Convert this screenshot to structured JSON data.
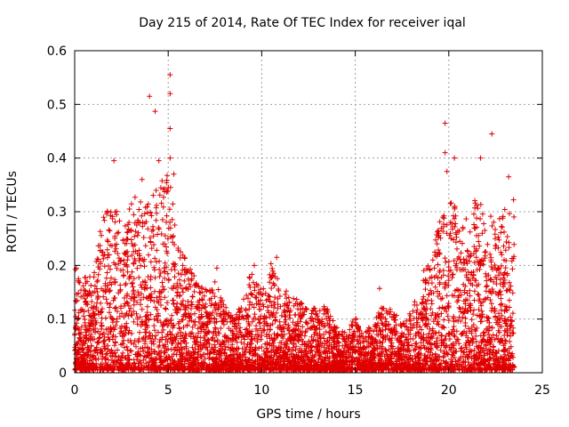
{
  "chart_data": {
    "type": "scatter",
    "title": "Day 215 of 2014, Rate Of TEC Index for receiver iqal",
    "xlabel": "GPS time / hours",
    "ylabel": "ROTI / TECUs",
    "xlim": [
      0,
      25
    ],
    "ylim": [
      0,
      0.6
    ],
    "x_ticks": [
      0,
      5,
      10,
      15,
      20,
      25
    ],
    "y_ticks": [
      0,
      0.1,
      0.2,
      0.3,
      0.4,
      0.5,
      0.6
    ],
    "x_tick_labels": [
      "0",
      "5",
      "10",
      "15",
      "20",
      "25"
    ],
    "y_tick_labels": [
      "0",
      "0.1",
      "0.2",
      "0.3",
      "0.4",
      "0.5",
      "0.6"
    ],
    "grid": true,
    "marker": "+",
    "marker_color": "#e00000",
    "series": [
      {
        "name": "ROTI",
        "points_note": "dense cloud; outliers listed explicitly",
        "envelope": [
          {
            "x": 0.0,
            "y": 0.2
          },
          {
            "x": 0.5,
            "y": 0.18
          },
          {
            "x": 1.0,
            "y": 0.17
          },
          {
            "x": 1.5,
            "y": 0.3
          },
          {
            "x": 2.0,
            "y": 0.33
          },
          {
            "x": 2.5,
            "y": 0.28
          },
          {
            "x": 3.0,
            "y": 0.32
          },
          {
            "x": 3.5,
            "y": 0.33
          },
          {
            "x": 4.0,
            "y": 0.31
          },
          {
            "x": 4.5,
            "y": 0.35
          },
          {
            "x": 5.0,
            "y": 0.38
          },
          {
            "x": 5.5,
            "y": 0.25
          },
          {
            "x": 6.0,
            "y": 0.2
          },
          {
            "x": 6.5,
            "y": 0.17
          },
          {
            "x": 7.0,
            "y": 0.15
          },
          {
            "x": 7.5,
            "y": 0.18
          },
          {
            "x": 8.0,
            "y": 0.12
          },
          {
            "x": 8.5,
            "y": 0.1
          },
          {
            "x": 9.0,
            "y": 0.14
          },
          {
            "x": 9.5,
            "y": 0.19
          },
          {
            "x": 10.0,
            "y": 0.15
          },
          {
            "x": 10.5,
            "y": 0.2
          },
          {
            "x": 11.0,
            "y": 0.16
          },
          {
            "x": 11.5,
            "y": 0.14
          },
          {
            "x": 12.0,
            "y": 0.13
          },
          {
            "x": 12.5,
            "y": 0.11
          },
          {
            "x": 13.0,
            "y": 0.12
          },
          {
            "x": 13.5,
            "y": 0.12
          },
          {
            "x": 14.0,
            "y": 0.08
          },
          {
            "x": 14.5,
            "y": 0.07
          },
          {
            "x": 15.0,
            "y": 0.1
          },
          {
            "x": 15.5,
            "y": 0.07
          },
          {
            "x": 16.0,
            "y": 0.09
          },
          {
            "x": 16.5,
            "y": 0.13
          },
          {
            "x": 17.0,
            "y": 0.11
          },
          {
            "x": 17.5,
            "y": 0.09
          },
          {
            "x": 18.0,
            "y": 0.11
          },
          {
            "x": 18.5,
            "y": 0.18
          },
          {
            "x": 19.0,
            "y": 0.2
          },
          {
            "x": 19.5,
            "y": 0.28
          },
          {
            "x": 20.0,
            "y": 0.32
          },
          {
            "x": 20.5,
            "y": 0.3
          },
          {
            "x": 21.0,
            "y": 0.28
          },
          {
            "x": 21.5,
            "y": 0.33
          },
          {
            "x": 22.0,
            "y": 0.3
          },
          {
            "x": 22.5,
            "y": 0.28
          },
          {
            "x": 23.0,
            "y": 0.3
          },
          {
            "x": 23.5,
            "y": 0.33
          }
        ],
        "outliers": [
          {
            "x": 5.1,
            "y": 0.555
          },
          {
            "x": 5.1,
            "y": 0.52
          },
          {
            "x": 4.0,
            "y": 0.515
          },
          {
            "x": 4.3,
            "y": 0.487
          },
          {
            "x": 5.1,
            "y": 0.455
          },
          {
            "x": 5.1,
            "y": 0.4
          },
          {
            "x": 4.5,
            "y": 0.395
          },
          {
            "x": 2.1,
            "y": 0.395
          },
          {
            "x": 19.8,
            "y": 0.465
          },
          {
            "x": 22.3,
            "y": 0.445
          },
          {
            "x": 19.8,
            "y": 0.41
          },
          {
            "x": 20.3,
            "y": 0.4
          },
          {
            "x": 21.7,
            "y": 0.4
          },
          {
            "x": 19.9,
            "y": 0.375
          },
          {
            "x": 5.3,
            "y": 0.37
          },
          {
            "x": 3.6,
            "y": 0.36
          },
          {
            "x": 23.2,
            "y": 0.365
          },
          {
            "x": 10.8,
            "y": 0.215
          },
          {
            "x": 9.6,
            "y": 0.2
          },
          {
            "x": 7.6,
            "y": 0.195
          },
          {
            "x": 16.3,
            "y": 0.157
          }
        ]
      }
    ]
  }
}
